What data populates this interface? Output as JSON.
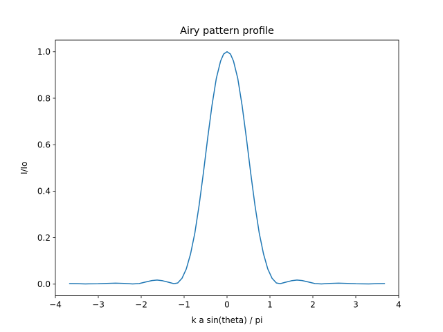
{
  "chart_data": {
    "type": "line",
    "title": "Airy pattern profile",
    "xlabel": "k a sin(theta) / pi",
    "ylabel": "I/Io",
    "xlim": [
      -4.0,
      4.0
    ],
    "ylim": [
      -0.05,
      1.05
    ],
    "xticks": [
      -4,
      -3,
      -2,
      -1,
      0,
      1,
      2,
      3,
      4
    ],
    "xtick_labels": [
      "−4",
      "−3",
      "−2",
      "−1",
      "0",
      "1",
      "2",
      "3",
      "4"
    ],
    "yticks": [
      0.0,
      0.2,
      0.4,
      0.6,
      0.8,
      1.0
    ],
    "ytick_labels": [
      "0.0",
      "0.2",
      "0.4",
      "0.6",
      "0.8",
      "1.0"
    ],
    "grid": false,
    "line_color": "#1f77b4",
    "series": [
      {
        "x": [
          -3.67,
          -3.5,
          -3.3,
          -3.0,
          -2.8,
          -2.6,
          -2.4,
          -2.2,
          -2.05,
          -1.9,
          -1.75,
          -1.63,
          -1.5,
          -1.35,
          -1.24,
          -1.15,
          -1.05,
          -0.95,
          -0.85,
          -0.75,
          -0.65,
          -0.55,
          -0.45,
          -0.35,
          -0.25,
          -0.15,
          -0.08,
          0.0,
          0.08,
          0.15,
          0.25,
          0.35,
          0.45,
          0.55,
          0.65,
          0.75,
          0.85,
          0.95,
          1.05,
          1.15,
          1.24,
          1.35,
          1.5,
          1.63,
          1.75,
          1.9,
          2.05,
          2.2,
          2.4,
          2.6,
          2.8,
          3.0,
          3.3,
          3.5,
          3.67
        ],
        "y": [
          0.0025,
          0.002,
          0.001,
          0.0015,
          0.003,
          0.0042,
          0.003,
          0.001,
          0.0025,
          0.009,
          0.0155,
          0.0175,
          0.0145,
          0.0075,
          0.002,
          0.005,
          0.025,
          0.065,
          0.13,
          0.22,
          0.34,
          0.48,
          0.63,
          0.77,
          0.885,
          0.96,
          0.99,
          1.0,
          0.99,
          0.96,
          0.885,
          0.77,
          0.63,
          0.48,
          0.34,
          0.22,
          0.13,
          0.065,
          0.025,
          0.005,
          0.002,
          0.0075,
          0.0145,
          0.0175,
          0.0155,
          0.009,
          0.0025,
          0.001,
          0.003,
          0.0042,
          0.003,
          0.0015,
          0.001,
          0.002,
          0.0025
        ]
      }
    ]
  }
}
